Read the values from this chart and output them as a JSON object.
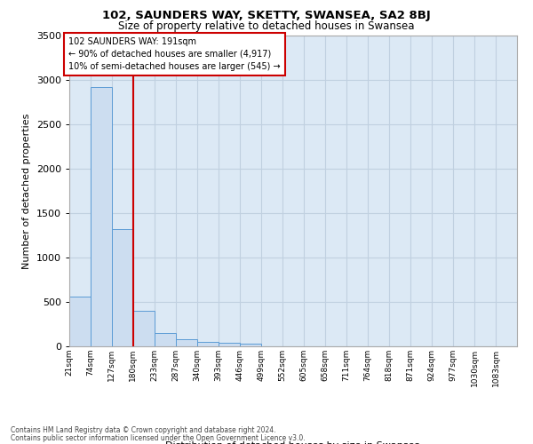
{
  "title": "102, SAUNDERS WAY, SKETTY, SWANSEA, SA2 8BJ",
  "subtitle": "Size of property relative to detached houses in Swansea",
  "xlabel": "Distribution of detached houses by size in Swansea",
  "ylabel": "Number of detached properties",
  "footer_line1": "Contains HM Land Registry data © Crown copyright and database right 2024.",
  "footer_line2": "Contains public sector information licensed under the Open Government Licence v3.0.",
  "bar_color": "#ccddf0",
  "bar_edge_color": "#5b9bd5",
  "grid_color": "#c0d0e0",
  "background_color": "#dce9f5",
  "annotation_box_color": "#cc0000",
  "vline_color": "#cc0000",
  "property_sqm": 191,
  "annotation_line1": "102 SAUNDERS WAY: 191sqm",
  "annotation_line2": "← 90% of detached houses are smaller (4,917)",
  "annotation_line3": "10% of semi-detached houses are larger (545) →",
  "bins": [
    21,
    74,
    127,
    180,
    233,
    287,
    340,
    393,
    446,
    499,
    552,
    605,
    658,
    711,
    764,
    818,
    871,
    924,
    977,
    1030,
    1083
  ],
  "bin_labels": [
    "21sqm",
    "74sqm",
    "127sqm",
    "180sqm",
    "233sqm",
    "287sqm",
    "340sqm",
    "393sqm",
    "446sqm",
    "499sqm",
    "552sqm",
    "605sqm",
    "658sqm",
    "711sqm",
    "764sqm",
    "818sqm",
    "871sqm",
    "924sqm",
    "977sqm",
    "1030sqm",
    "1083sqm"
  ],
  "bar_heights": [
    560,
    2920,
    1320,
    400,
    150,
    80,
    55,
    45,
    35,
    0,
    0,
    0,
    0,
    0,
    0,
    0,
    0,
    0,
    0,
    0
  ],
  "ylim": [
    0,
    3500
  ],
  "yticks": [
    0,
    500,
    1000,
    1500,
    2000,
    2500,
    3000,
    3500
  ]
}
